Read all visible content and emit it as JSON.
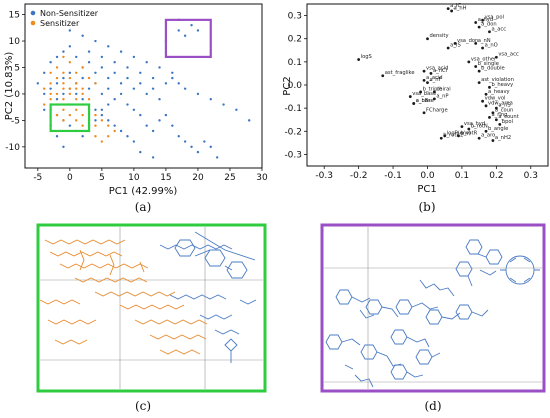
{
  "captions": {
    "a": "(a)",
    "b": "(b)",
    "c": "(c)",
    "d": "(d)"
  },
  "colors": {
    "non_sensitizer": "#3a76c4",
    "sensitizer": "#f08a1c",
    "green_box": "#2ecc40",
    "purple_box": "#9b4fc4",
    "loading_marker": "#1a1a1a",
    "structure_blue": "#4a7bc4",
    "structure_orange": "#e8892a"
  },
  "chart_data": [
    {
      "id": "a",
      "type": "scatter",
      "xlabel": "PC1 (42.99%)",
      "ylabel": "PC2 (10.83%)",
      "xlim": [
        -7,
        30
      ],
      "ylim": [
        -14,
        17
      ],
      "xticks": [
        "-5",
        "0",
        "5",
        "10",
        "15",
        "20",
        "25",
        "30"
      ],
      "xtick_values": [
        -5,
        0,
        5,
        10,
        15,
        20,
        25,
        30
      ],
      "yticks": [
        "-10",
        "-5",
        "0",
        "5",
        "10",
        "15"
      ],
      "ytick_values": [
        -10,
        -5,
        0,
        5,
        10,
        15
      ],
      "grid": false,
      "legend": {
        "placement": "top-left",
        "entries": [
          "Non-Sensitizer",
          "Sensitizer"
        ]
      },
      "series": [
        {
          "name": "Non-Sensitizer",
          "color": "#3a76c4",
          "points": [
            [
              -4,
              4
            ],
            [
              -3,
              6
            ],
            [
              -2,
              7
            ],
            [
              -1,
              8
            ],
            [
              0,
              9
            ],
            [
              1,
              7
            ],
            [
              2,
              5
            ],
            [
              3,
              6
            ],
            [
              4,
              4
            ],
            [
              5,
              5
            ],
            [
              6,
              3
            ],
            [
              7,
              4
            ],
            [
              8,
              2
            ],
            [
              9,
              3
            ],
            [
              10,
              1
            ],
            [
              11,
              2
            ],
            [
              12,
              0
            ],
            [
              13,
              1
            ],
            [
              14,
              -1
            ],
            [
              -5,
              2
            ],
            [
              -4,
              0
            ],
            [
              -3,
              -2
            ],
            [
              -2,
              -4
            ],
            [
              -1,
              -5
            ],
            [
              0,
              -6
            ],
            [
              1,
              -7
            ],
            [
              2,
              -8
            ],
            [
              3,
              -6
            ],
            [
              4,
              -5
            ],
            [
              5,
              -3
            ],
            [
              6,
              -2
            ],
            [
              7,
              -1
            ],
            [
              8,
              0
            ],
            [
              9,
              -2
            ],
            [
              10,
              -3
            ],
            [
              11,
              -4
            ],
            [
              12,
              -6
            ],
            [
              13,
              -7
            ],
            [
              14,
              -5
            ],
            [
              15,
              -4
            ],
            [
              16,
              -6
            ],
            [
              17,
              -8
            ],
            [
              18,
              -9
            ],
            [
              19,
              -10
            ],
            [
              20,
              -11
            ],
            [
              21,
              -9
            ],
            [
              22,
              -10
            ],
            [
              23,
              -12
            ],
            [
              16,
              3
            ],
            [
              17,
              2
            ],
            [
              18,
              1
            ],
            [
              20,
              0
            ],
            [
              22,
              -1
            ],
            [
              24,
              -2
            ],
            [
              26,
              -3
            ],
            [
              28,
              -5
            ],
            [
              -3,
              1
            ],
            [
              -2,
              2
            ],
            [
              -1,
              3
            ],
            [
              0,
              4
            ],
            [
              1,
              2
            ],
            [
              2,
              3
            ],
            [
              3,
              1
            ],
            [
              4,
              2
            ],
            [
              5,
              0
            ],
            [
              6,
              1
            ],
            [
              -2,
              -1
            ],
            [
              -1,
              0
            ],
            [
              0,
              1
            ],
            [
              1,
              0
            ],
            [
              2,
              -1
            ],
            [
              3,
              -2
            ],
            [
              4,
              -3
            ],
            [
              5,
              -4
            ],
            [
              6,
              -5
            ],
            [
              7,
              -6
            ],
            [
              8,
              -7
            ],
            [
              9,
              -8
            ],
            [
              10,
              -9
            ],
            [
              0,
              12
            ],
            [
              2,
              11
            ],
            [
              4,
              10
            ],
            [
              6,
              9
            ],
            [
              8,
              8
            ],
            [
              10,
              7
            ],
            [
              12,
              6
            ],
            [
              14,
              5
            ],
            [
              16,
              4
            ],
            [
              17,
              12
            ],
            [
              18,
              11
            ],
            [
              19,
              13
            ],
            [
              20,
              12
            ],
            [
              17,
              14
            ],
            [
              15,
              10
            ],
            [
              -4,
              -3
            ],
            [
              -3,
              -6
            ],
            [
              -2,
              -8
            ],
            [
              -1,
              -10
            ],
            [
              11,
              -11
            ],
            [
              13,
              -12
            ],
            [
              3,
              8
            ],
            [
              5,
              7
            ],
            [
              7,
              6
            ],
            [
              9,
              5
            ],
            [
              11,
              4
            ],
            [
              13,
              3
            ],
            [
              15,
              2
            ]
          ]
        },
        {
          "name": "Sensitizer",
          "color": "#f08a1c",
          "points": [
            [
              -4,
              1
            ],
            [
              -3,
              2
            ],
            [
              -2,
              3
            ],
            [
              -1,
              2
            ],
            [
              0,
              1
            ],
            [
              1,
              2
            ],
            [
              2,
              1
            ],
            [
              -3,
              -1
            ],
            [
              -2,
              0
            ],
            [
              -1,
              -1
            ],
            [
              0,
              0
            ],
            [
              1,
              -1
            ],
            [
              2,
              -2
            ],
            [
              3,
              -1
            ],
            [
              -2,
              -2
            ],
            [
              -1,
              -3
            ],
            [
              0,
              -2
            ],
            [
              1,
              -3
            ],
            [
              2,
              -4
            ],
            [
              3,
              -3
            ],
            [
              4,
              -4
            ],
            [
              5,
              -5
            ],
            [
              6,
              -6
            ],
            [
              7,
              -7
            ],
            [
              -3,
              4
            ],
            [
              -2,
              5
            ],
            [
              -1,
              4
            ],
            [
              0,
              3
            ],
            [
              1,
              4
            ],
            [
              -4,
              -2
            ],
            [
              -3,
              -3
            ],
            [
              -2,
              -4
            ],
            [
              -1,
              -5
            ],
            [
              0,
              -4
            ],
            [
              1,
              -5
            ],
            [
              2,
              -6
            ],
            [
              3,
              -7
            ],
            [
              4,
              -8
            ],
            [
              5,
              -9
            ],
            [
              6,
              -8
            ],
            [
              0,
              6
            ],
            [
              -1,
              7
            ],
            [
              2,
              5
            ],
            [
              3,
              3
            ],
            [
              4,
              2
            ],
            [
              -3,
              0
            ],
            [
              -1,
              1
            ],
            [
              1,
              1
            ],
            [
              2,
              0
            ],
            [
              3,
              -5
            ],
            [
              4,
              -6
            ]
          ]
        }
      ],
      "highlight_boxes": [
        {
          "name": "green-box",
          "color": "#2ecc40",
          "x": [
            -3,
            3
          ],
          "y": [
            -7,
            -2
          ]
        },
        {
          "name": "purple-box",
          "color": "#9b4fc4",
          "x": [
            15,
            22
          ],
          "y": [
            7,
            14
          ]
        }
      ]
    },
    {
      "id": "b",
      "type": "scatter",
      "xlabel": "PC1",
      "ylabel": "PC2",
      "xlim": [
        -0.35,
        0.35
      ],
      "ylim": [
        -0.35,
        0.35
      ],
      "xticks": [
        "-0.3",
        "-0.2",
        "-0.1",
        "0.0",
        "0.1",
        "0.2",
        "0.3"
      ],
      "xtick_values": [
        -0.3,
        -0.2,
        -0.1,
        0.0,
        0.1,
        0.2,
        0.3
      ],
      "yticks": [
        "-0.3",
        "-0.2",
        "-0.1",
        "0.0",
        "0.1",
        "0.2",
        "0.3"
      ],
      "ytick_values": [
        -0.3,
        -0.2,
        -0.1,
        0.0,
        0.1,
        0.2,
        0.3
      ],
      "grid": false,
      "points": [
        {
          "label": "a_IC",
          "x": 0.06,
          "y": 0.33
        },
        {
          "label": "a_nH",
          "x": 0.07,
          "y": 0.32
        },
        {
          "label": "vsa_pol",
          "x": 0.16,
          "y": 0.28
        },
        {
          "label": "a_hyd",
          "x": 0.14,
          "y": 0.27
        },
        {
          "label": "a_don",
          "x": 0.15,
          "y": 0.25
        },
        {
          "label": "a_acc",
          "x": 0.18,
          "y": 0.23
        },
        {
          "label": "density",
          "x": 0.0,
          "y": 0.2
        },
        {
          "label": "vsa_don",
          "x": 0.08,
          "y": 0.18
        },
        {
          "label": "a_nN",
          "x": 0.14,
          "y": 0.18
        },
        {
          "label": "a_IS",
          "x": 0.06,
          "y": 0.16
        },
        {
          "label": "a_nO",
          "x": 0.16,
          "y": 0.16
        },
        {
          "label": "vsa_acc",
          "x": 0.2,
          "y": 0.12
        },
        {
          "label": "logS",
          "x": -0.2,
          "y": 0.11
        },
        {
          "label": "vsa_other",
          "x": 0.12,
          "y": 0.1
        },
        {
          "label": "b_single",
          "x": 0.14,
          "y": 0.08
        },
        {
          "label": "b_double",
          "x": 0.15,
          "y": 0.06
        },
        {
          "label": "vsa_acid",
          "x": -0.01,
          "y": 0.06
        },
        {
          "label": "a_nCl",
          "x": 0.01,
          "y": 0.05
        },
        {
          "label": "a_acid",
          "x": -0.01,
          "y": 0.02
        },
        {
          "label": "ast_fraglike",
          "x": -0.13,
          "y": 0.04
        },
        {
          "label": "a_nF",
          "x": 0.0,
          "y": 0.01
        },
        {
          "label": "ast_violation",
          "x": 0.15,
          "y": 0.01
        },
        {
          "label": "b_heavy",
          "x": 0.18,
          "y": -0.01
        },
        {
          "label": "b_triple",
          "x": -0.02,
          "y": -0.03
        },
        {
          "label": "chiral",
          "x": 0.02,
          "y": -0.03
        },
        {
          "label": "a_heavy",
          "x": 0.17,
          "y": -0.04
        },
        {
          "label": "vsa_base",
          "x": -0.05,
          "y": -0.05
        },
        {
          "label": "a_nP",
          "x": 0.02,
          "y": -0.06
        },
        {
          "label": "vdw_vol",
          "x": 0.16,
          "y": -0.07
        },
        {
          "label": "a_base",
          "x": -0.04,
          "y": -0.08
        },
        {
          "label": "a_nBr",
          "x": -0.04,
          "y": -0.08
        },
        {
          "label": "vdw_area",
          "x": 0.17,
          "y": -0.09
        },
        {
          "label": "a_nS",
          "x": 0.2,
          "y": -0.1
        },
        {
          "label": "FCharge",
          "x": -0.01,
          "y": -0.12
        },
        {
          "label": "a_coun",
          "x": 0.19,
          "y": -0.12
        },
        {
          "label": "a_ring",
          "x": 0.18,
          "y": -0.14
        },
        {
          "label": "a_count",
          "x": 0.2,
          "y": -0.15
        },
        {
          "label": "bpol",
          "x": 0.21,
          "y": -0.17
        },
        {
          "label": "vsa_hyd",
          "x": 0.1,
          "y": -0.18
        },
        {
          "label": "b_rotN",
          "x": 0.12,
          "y": -0.19
        },
        {
          "label": "b_angle",
          "x": 0.17,
          "y": -0.2
        },
        {
          "label": "logP(o/w)",
          "x": 0.05,
          "y": -0.22
        },
        {
          "label": "b_rotR",
          "x": 0.09,
          "y": -0.22
        },
        {
          "label": "b_rotR2",
          "x": 0.04,
          "y": -0.23
        },
        {
          "label": "a_aro",
          "x": 0.15,
          "y": -0.23
        },
        {
          "label": "a_nH2",
          "x": 0.19,
          "y": -0.24
        }
      ]
    }
  ],
  "panels": {
    "c": {
      "name": "zoom-sensitizer-structures",
      "border_color": "#2ecc40"
    },
    "d": {
      "name": "zoom-nonsensitizer-structures",
      "border_color": "#9b4fc4"
    }
  }
}
